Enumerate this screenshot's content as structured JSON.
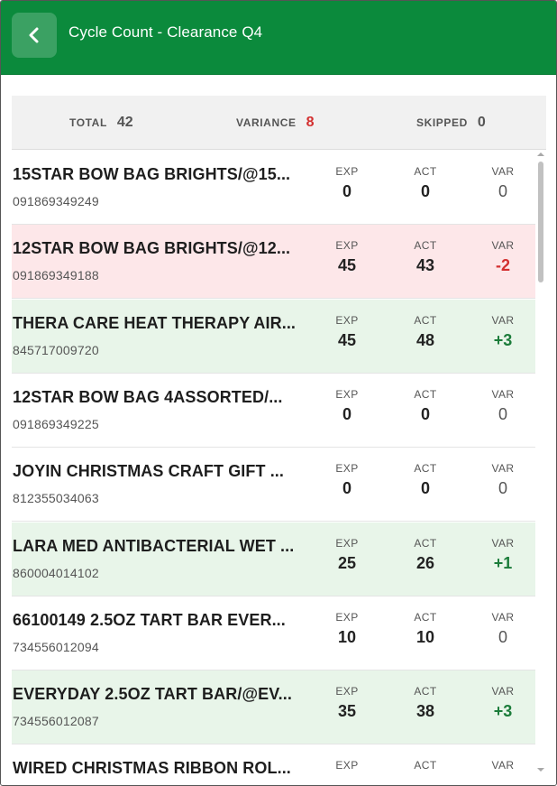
{
  "header": {
    "title": "Cycle Count - Clearance Q4",
    "back_icon": "chevron-left-icon",
    "background": "#0b8a3c"
  },
  "summary": {
    "total_label": "TOTAL",
    "total_value": "42",
    "variance_label": "VARIANCE",
    "variance_value": "8",
    "variance_color": "#d32f2f",
    "skipped_label": "SKIPPED",
    "skipped_value": "0"
  },
  "columns": {
    "exp": "EXP",
    "act": "ACT",
    "var": "VAR"
  },
  "items": [
    {
      "name": "15STAR BOW BAG BRIGHTS/@15...",
      "sku": "091869349249",
      "exp": "0",
      "act": "0",
      "var": "0",
      "status": "none"
    },
    {
      "name": "12STAR BOW BAG BRIGHTS/@12...",
      "sku": "091869349188",
      "exp": "45",
      "act": "43",
      "var": "-2",
      "status": "neg"
    },
    {
      "name": "THERA CARE HEAT THERAPY AIR...",
      "sku": "845717009720",
      "exp": "45",
      "act": "48",
      "var": "+3",
      "status": "pos"
    },
    {
      "name": "12STAR BOW BAG 4ASSORTED/...",
      "sku": "091869349225",
      "exp": "0",
      "act": "0",
      "var": "0",
      "status": "none"
    },
    {
      "name": "JOYIN CHRISTMAS CRAFT GIFT ...",
      "sku": "812355034063",
      "exp": "0",
      "act": "0",
      "var": "0",
      "status": "none"
    },
    {
      "name": "LARA MED ANTIBACTERIAL WET ...",
      "sku": "860004014102",
      "exp": "25",
      "act": "26",
      "var": "+1",
      "status": "pos"
    },
    {
      "name": "66100149 2.5OZ TART BAR EVER...",
      "sku": "734556012094",
      "exp": "10",
      "act": "10",
      "var": "0",
      "status": "none"
    },
    {
      "name": "EVERYDAY 2.5OZ TART BAR/@EV...",
      "sku": "734556012087",
      "exp": "35",
      "act": "38",
      "var": "+3",
      "status": "pos"
    },
    {
      "name": "WIRED CHRISTMAS RIBBON ROL...",
      "sku": "",
      "exp": "",
      "act": "",
      "var": "",
      "status": "none"
    }
  ],
  "colors": {
    "negative_row": "#fde7e9",
    "positive_row": "#e8f5e9",
    "negative_text": "#d32f2f",
    "positive_text": "#1b7c3a"
  }
}
